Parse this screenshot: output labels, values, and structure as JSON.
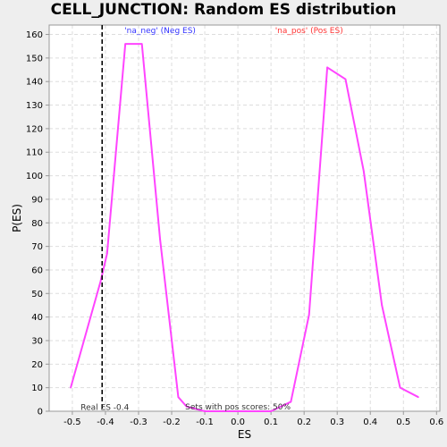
{
  "chart_data": {
    "type": "line",
    "title": "CELL_JUNCTION: Random ES distribution",
    "xlabel": "ES",
    "ylabel": "P(ES)",
    "xlim": [
      -0.57,
      0.61
    ],
    "ylim": [
      0,
      164
    ],
    "xticks": [
      -0.5,
      -0.4,
      -0.3,
      -0.2,
      -0.1,
      0.0,
      0.1,
      0.2,
      0.3,
      0.4,
      0.5,
      0.6
    ],
    "xtick_labels": [
      "-0.5",
      "-0.4",
      "-0.3",
      "-0.2",
      "-0.1",
      "0.0",
      "0.1",
      "0.2",
      "0.3",
      "0.4",
      "0.5",
      "0.6"
    ],
    "yticks": [
      0,
      10,
      20,
      30,
      40,
      50,
      60,
      70,
      80,
      90,
      100,
      110,
      120,
      130,
      140,
      150,
      160
    ],
    "ytick_labels": [
      "0",
      "10",
      "20",
      "30",
      "40",
      "50",
      "60",
      "70",
      "80",
      "90",
      "100",
      "110",
      "120",
      "130",
      "140",
      "150",
      "160"
    ],
    "grid": true,
    "series": [
      {
        "color": "#ff44ff",
        "x": [
          -0.505,
          -0.415,
          -0.395,
          -0.34,
          -0.29,
          -0.235,
          -0.18,
          -0.155,
          -0.1,
          0.0,
          0.05,
          0.1,
          0.16,
          0.215,
          0.27,
          0.325,
          0.38,
          0.435,
          0.49,
          0.545
        ],
        "y": [
          10,
          55,
          67,
          156,
          156,
          73,
          6,
          2,
          0,
          0,
          0,
          0,
          4,
          41,
          146,
          141,
          102,
          45,
          10,
          6
        ]
      }
    ],
    "vline": {
      "x": -0.41,
      "label": "Real ES -0.4",
      "color": "#000000"
    },
    "annotations": {
      "neg": {
        "text": "'na_neg' (Neg ES)",
        "color": "#3333ff",
        "x": -0.235,
        "y": 160.5
      },
      "pos": {
        "text": "'na_pos' (Pos ES)",
        "color": "#ff3333",
        "x": 0.215,
        "y": 160.5
      },
      "sets": {
        "text": "Sets with pos scores: 50%",
        "color": "#333333",
        "x": 0.0,
        "y": 0.8
      }
    },
    "colors": {
      "grid": "#dddddd",
      "axis": "#999999",
      "plot_bg": "#ffffff"
    }
  }
}
